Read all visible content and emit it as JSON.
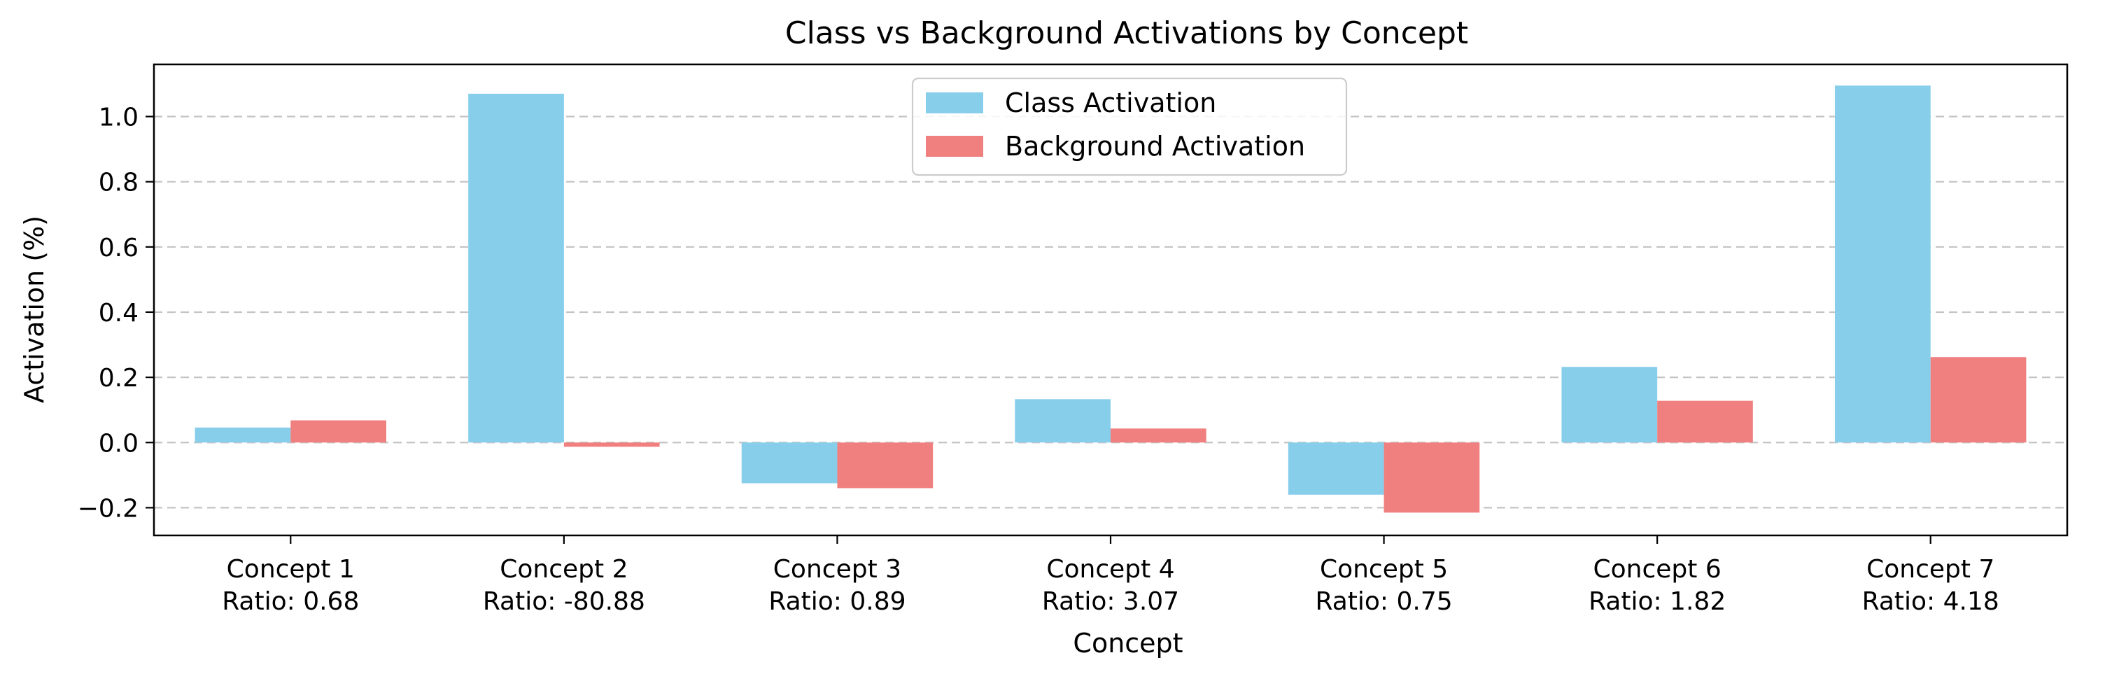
{
  "chart_data": {
    "type": "bar",
    "title": "Class vs Background Activations by Concept",
    "xlabel": "Concept",
    "ylabel": "Activation (%)",
    "categories": [
      "Concept 1",
      "Concept 2",
      "Concept 3",
      "Concept 4",
      "Concept 5",
      "Concept 6",
      "Concept 7"
    ],
    "ratio_labels": [
      "Ratio: 0.68",
      "Ratio: -80.88",
      "Ratio: 0.89",
      "Ratio: 3.07",
      "Ratio: 0.75",
      "Ratio: 1.82",
      "Ratio: 4.18"
    ],
    "series": [
      {
        "name": "Class Activation",
        "color": "#87CEEB",
        "values": [
          0.046,
          1.07,
          -0.125,
          0.133,
          -0.16,
          0.232,
          1.095
        ]
      },
      {
        "name": "Background Activation",
        "color": "#F08080",
        "values": [
          0.068,
          -0.013,
          -0.14,
          0.043,
          -0.215,
          0.128,
          0.262
        ]
      }
    ],
    "ylim": [
      -0.285,
      1.16
    ],
    "yticks": [
      -0.2,
      0.0,
      0.2,
      0.4,
      0.6,
      0.8,
      1.0
    ],
    "ytick_labels": [
      "−0.2",
      "0.0",
      "0.2",
      "0.4",
      "0.6",
      "0.8",
      "1.0"
    ],
    "grid": "y-dashed",
    "legend_position": "top-center"
  }
}
